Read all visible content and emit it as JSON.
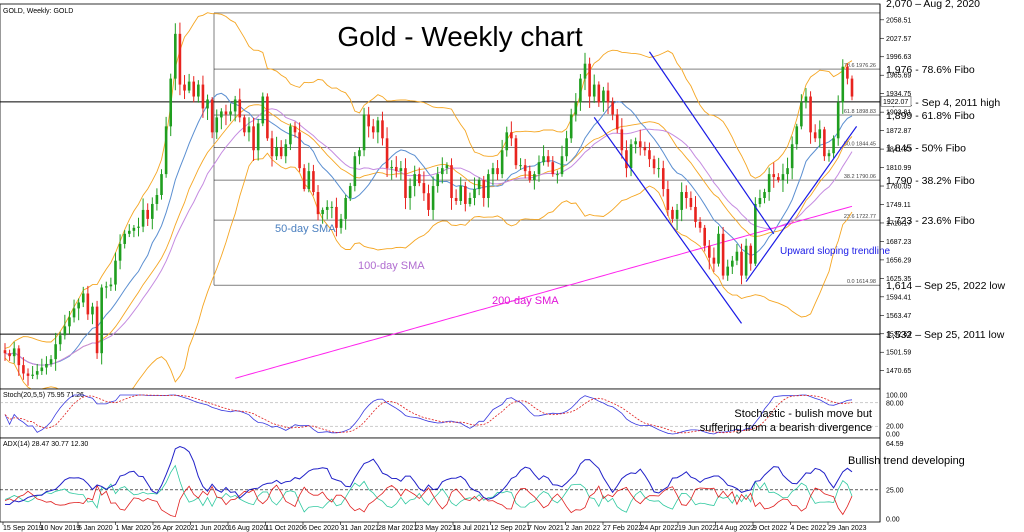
{
  "chart_data": {
    "type": "candlestick",
    "symbol_label": "GOLD, Weekly:  GOLD",
    "title": "Gold - Weekly chart",
    "ylim": [
      1440,
      2085
    ],
    "y_ticks": [
      2058.51,
      2027.57,
      1996.63,
      1965.69,
      1934.75,
      1903.81,
      1872.87,
      1841.93,
      1810.99,
      1780.05,
      1749.11,
      1718.17,
      1687.23,
      1656.29,
      1625.35,
      1594.41,
      1563.47,
      1532.53,
      1501.59,
      1470.65
    ],
    "x_ticks": [
      "15 Sep 2019",
      "10 Nov 2019",
      "5 Jan 2020",
      "1 Mar 2020",
      "26 Apr 2020",
      "21 Jun 2020",
      "16 Aug 2020",
      "11 Oct 2020",
      "6 Dec 2020",
      "31 Jan 2021",
      "28 Mar 2021",
      "23 May 2021",
      "18 Jul 2021",
      "12 Sep 2021",
      "7 Nov 2021",
      "2 Jan 2022",
      "27 Feb 2022",
      "24 Apr 2022",
      "19 Jun 2022",
      "14 Aug 2022",
      "9 Oct 2022",
      "4 Dec 2022",
      "29 Jan 2023"
    ],
    "current_price": "1922.07",
    "closes": [
      1500,
      1495,
      1508,
      1480,
      1466,
      1462,
      1464,
      1470,
      1476,
      1482,
      1490,
      1515,
      1530,
      1545,
      1560,
      1575,
      1585,
      1600,
      1565,
      1578,
      1500,
      1610,
      1612,
      1615,
      1655,
      1683,
      1700,
      1705,
      1710,
      1712,
      1740,
      1725,
      1750,
      1765,
      1800,
      1880,
      1960,
      2035,
      1950,
      1940,
      1955,
      1930,
      1950,
      1910,
      1925,
      1870,
      1895,
      1905,
      1900,
      1905,
      1925,
      1895,
      1870,
      1880,
      1840,
      1885,
      1930,
      1860,
      1830,
      1845,
      1830,
      1850,
      1880,
      1870,
      1810,
      1775,
      1805,
      1770,
      1733,
      1740,
      1745,
      1745,
      1710,
      1725,
      1760,
      1780,
      1830,
      1840,
      1900,
      1880,
      1870,
      1890,
      1860,
      1810,
      1812,
      1805,
      1810,
      1760,
      1780,
      1800,
      1785,
      1768,
      1740,
      1780,
      1800,
      1810,
      1815,
      1760,
      1755,
      1780,
      1750,
      1760,
      1775,
      1790,
      1760,
      1800,
      1810,
      1800,
      1840,
      1870,
      1860,
      1815,
      1815,
      1805,
      1790,
      1800,
      1820,
      1830,
      1820,
      1800,
      1800,
      1830,
      1860,
      1900,
      1920,
      1960,
      1985,
      1930,
      1950,
      1920,
      1940,
      1920,
      1900,
      1875,
      1840,
      1810,
      1850,
      1855,
      1845,
      1840,
      1825,
      1810,
      1810,
      1775,
      1740,
      1725,
      1740,
      1770,
      1760,
      1745,
      1720,
      1710,
      1680,
      1660,
      1650,
      1700,
      1630,
      1645,
      1655,
      1670,
      1630,
      1680,
      1650,
      1750,
      1760,
      1770,
      1800,
      1795,
      1790,
      1800,
      1810,
      1850,
      1880,
      1920,
      1930,
      1870,
      1860,
      1875,
      1830,
      1835,
      1860,
      1920,
      1980,
      1960,
      1930
    ]
  },
  "levels": [
    {
      "label": "1,976 - 78.6% Fibo",
      "value": 1976
    },
    {
      "label": "1,921 - Sep 4, 2011 high",
      "value": 1921
    },
    {
      "label": "1,899 - 61.8% Fibo",
      "value": 1899
    },
    {
      "label": "1,845 - 50% Fibo",
      "value": 1845
    },
    {
      "label": "1,790 - 38.2% Fibo",
      "value": 1790
    },
    {
      "label": "1,723 - 23.6% Fibo",
      "value": 1723
    },
    {
      "label": "1,614 – Sep 25, 2022 low",
      "value": 1614
    },
    {
      "label": "1,532 – Sep 25, 2011 low",
      "value": 1532
    }
  ],
  "top_level_label": "2,070 – Aug 2, 2020",
  "fibo_tags": [
    {
      "label": "78.6 1976.26",
      "value": 1976
    },
    {
      "label": "61.8 1898.83",
      "value": 1899
    },
    {
      "label": "50.0 1844.45",
      "value": 1845
    },
    {
      "label": "38.2 1790.06",
      "value": 1790
    },
    {
      "label": "23.6 1722.77",
      "value": 1723
    },
    {
      "label": "0.0 1614.98",
      "value": 1614
    }
  ],
  "annotations": {
    "sma50": "50-day SMA",
    "sma100": "100-day SMA",
    "sma200": "200-day SMA",
    "trendline": "Upward sloping trendline",
    "stoch_note_1": "Stochastic - bulish move but",
    "stoch_note_2": "suffering from a bearish divergence",
    "adx_note": "Bullish trend developing"
  },
  "stochastic": {
    "header": "Stoch(20,5,5) 75.95 71.26",
    "ylim": [
      0,
      100
    ],
    "y_ticks": [
      "100.00",
      "80.00",
      "20.00",
      "0.00"
    ]
  },
  "adx": {
    "header": "ADX(14) 28.47 30.77 12.30",
    "ylim": [
      0,
      65
    ],
    "y_ticks": [
      "64.59",
      "25.00",
      "0.00"
    ]
  },
  "colors": {
    "bull": "#1f9e1f",
    "bear": "#e8231e",
    "sma50": "#5b8fd1",
    "sma100": "#c58be0",
    "sma200": "#ff22ee",
    "bollinger": "#f5a623",
    "channel": "#1a1ae6",
    "stoch_main": "#3a3adf",
    "stoch_signal": "#e02020",
    "adx_main": "#2020c8",
    "adx_plus": "#30c9a0",
    "adx_minus": "#e02020"
  }
}
